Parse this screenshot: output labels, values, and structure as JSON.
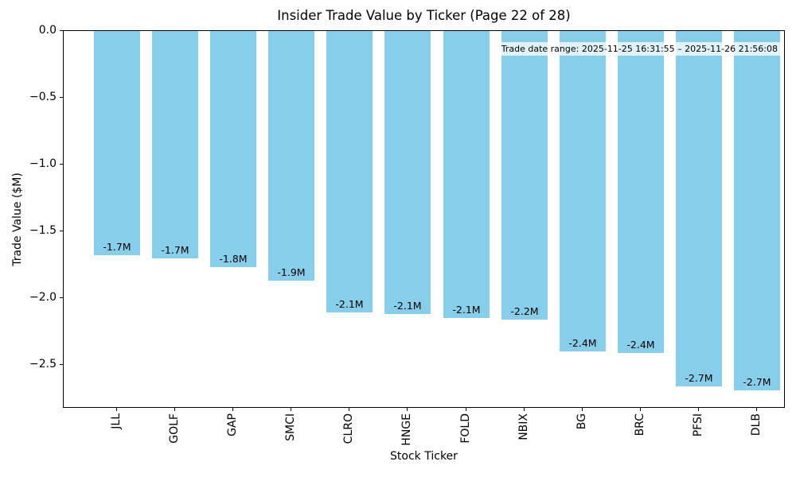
{
  "chart_data": {
    "type": "bar",
    "title": "Insider Trade Value by Ticker (Page 22 of 28)",
    "xlabel": "Stock Ticker",
    "ylabel": "Trade Value ($M)",
    "annotation": "Trade date range: 2025-11-25 16:31:55 – 2025-11-26 21:56:08",
    "categories": [
      "JLL",
      "GOLF",
      "GAP",
      "SMCI",
      "CLRO",
      "HNGE",
      "FOLD",
      "NBIX",
      "BG",
      "BRC",
      "PFSI",
      "DLB"
    ],
    "values": [
      -1.68,
      -1.7,
      -1.77,
      -1.87,
      -2.11,
      -2.12,
      -2.15,
      -2.16,
      -2.4,
      -2.41,
      -2.66,
      -2.69
    ],
    "bar_labels": [
      "-1.7M",
      "-1.7M",
      "-1.8M",
      "-1.9M",
      "-2.1M",
      "-2.1M",
      "-2.1M",
      "-2.2M",
      "-2.4M",
      "-2.4M",
      "-2.7M",
      "-2.7M"
    ],
    "yticks": [
      0.0,
      -0.5,
      -1.0,
      -1.5,
      -2.0,
      -2.5
    ],
    "ytick_labels": [
      "0.0",
      "−0.5",
      "−1.0",
      "−1.5",
      "−2.0",
      "−2.5"
    ],
    "ylim": [
      -2.83,
      0.0
    ],
    "grid": false,
    "legend": "none",
    "bar_color": "#87CEEB",
    "text_color": "#000000",
    "background_color": "#FFFFFF"
  }
}
